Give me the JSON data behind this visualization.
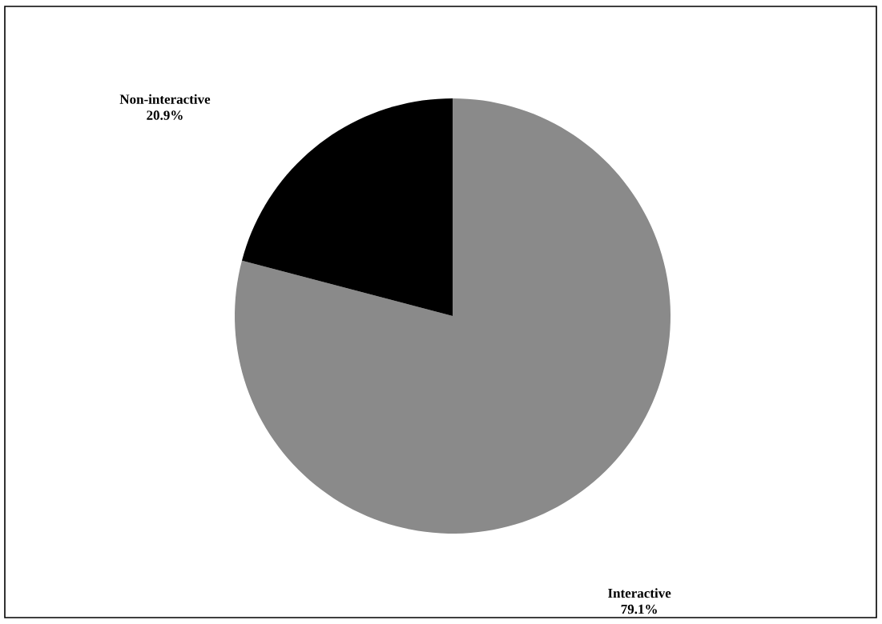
{
  "chart_data": {
    "type": "pie",
    "categories": [
      "Interactive",
      "Non-interactive"
    ],
    "values": [
      79.1,
      20.9
    ],
    "colors": [
      "#8a8a8a",
      "#000000"
    ],
    "value_labels": [
      "79.1%",
      "20.9%"
    ]
  }
}
